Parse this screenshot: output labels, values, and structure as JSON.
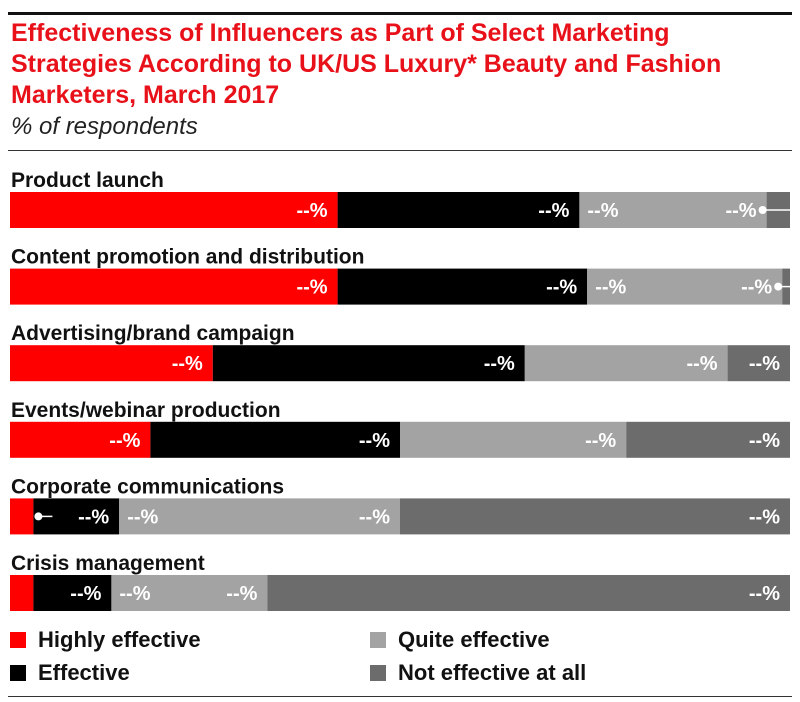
{
  "chart_data": {
    "type": "bar",
    "orientation": "horizontal",
    "stacked": true,
    "title": "Effectiveness of Influencers as Part of Select Marketing Strategies According to UK/US Luxury* Beauty and Fashion Marketers, March 2017",
    "subtitle": "% of respondents",
    "categories": [
      "Product launch",
      "Content promotion and distribution",
      "Advertising/brand campaign",
      "Events/webinar production",
      "Corporate communications",
      "Crisis management"
    ],
    "series": [
      {
        "name": "Highly effective",
        "color": "#ff0000",
        "values": [
          42,
          42,
          26,
          18,
          3,
          3
        ],
        "labels": [
          "--%",
          "--%",
          "--%",
          "--%",
          "",
          ""
        ]
      },
      {
        "name": "Effective",
        "color": "#000000",
        "values": [
          31,
          32,
          40,
          32,
          11,
          10
        ],
        "labels": [
          "--%",
          "--%",
          "--%",
          "--%",
          "--%",
          "--%"
        ]
      },
      {
        "name": "Quite effective",
        "color": "#a3a3a3",
        "values": [
          24,
          25,
          26,
          29,
          36,
          20
        ],
        "labels": [
          "--%",
          "--%",
          "--%",
          "--%",
          "--%",
          "--%"
        ]
      },
      {
        "name": "Not effective at all",
        "color": "#6c6c6c",
        "values": [
          3,
          1,
          8,
          21,
          50,
          67
        ],
        "labels": [
          "",
          "",
          "--%",
          "--%",
          "--%",
          "--%"
        ]
      }
    ],
    "extra_labels": {
      "third_segment": [
        "--%",
        "--%",
        "",
        "",
        "--%",
        "--%"
      ]
    },
    "dot_markers": [
      "end",
      "end",
      "none",
      "none",
      "start",
      "none"
    ],
    "xlim": [
      0,
      100
    ],
    "legend_position": "bottom"
  }
}
